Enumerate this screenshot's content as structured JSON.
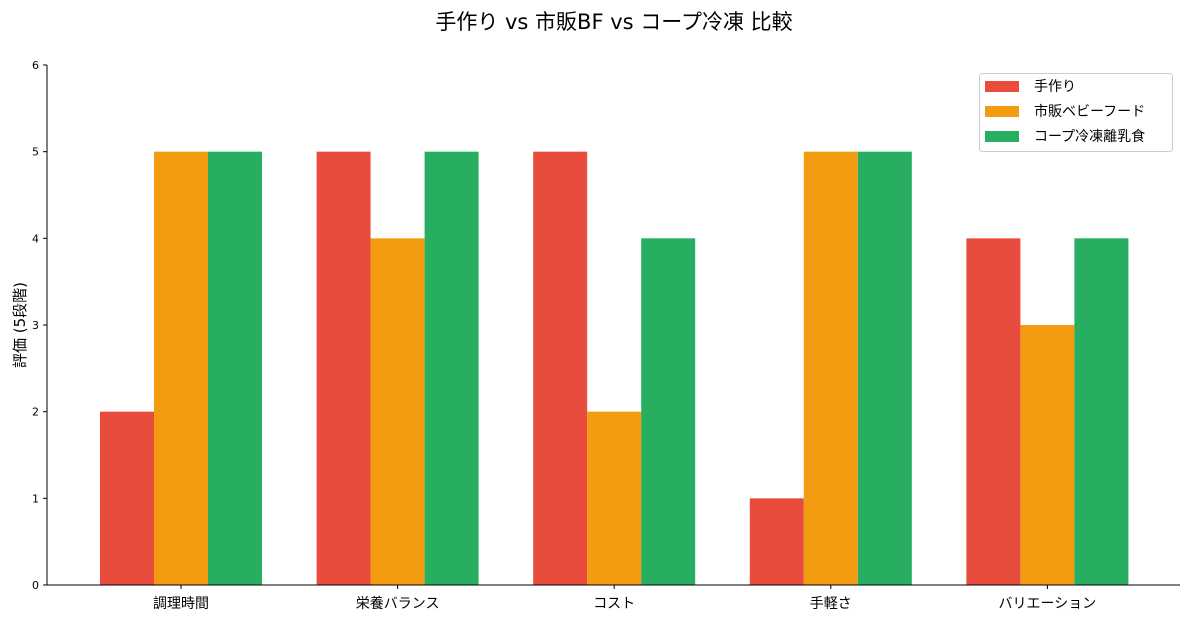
{
  "chart_data": {
    "type": "bar",
    "title": "手作り vs 市販BF vs コープ冷凍 比較",
    "xlabel": "",
    "ylabel": "評価 (5段階)",
    "ylim": [
      0,
      6
    ],
    "yticks": [
      "0",
      "1",
      "2",
      "3",
      "4",
      "5",
      "6"
    ],
    "categories": [
      "調理時間",
      "栄養バランス",
      "コスト",
      "手軽さ",
      "バリエーション"
    ],
    "series": [
      {
        "name": "手作り",
        "color": "#e74c3c",
        "values": [
          2,
          5,
          5,
          1,
          4
        ]
      },
      {
        "name": "市販ベビーフード",
        "color": "#f39c12",
        "values": [
          5,
          4,
          2,
          5,
          3
        ]
      },
      {
        "name": "コープ冷凍離乳食",
        "color": "#27ae60",
        "values": [
          5,
          5,
          4,
          5,
          4
        ]
      }
    ],
    "grid": false,
    "legend": "top-right"
  }
}
